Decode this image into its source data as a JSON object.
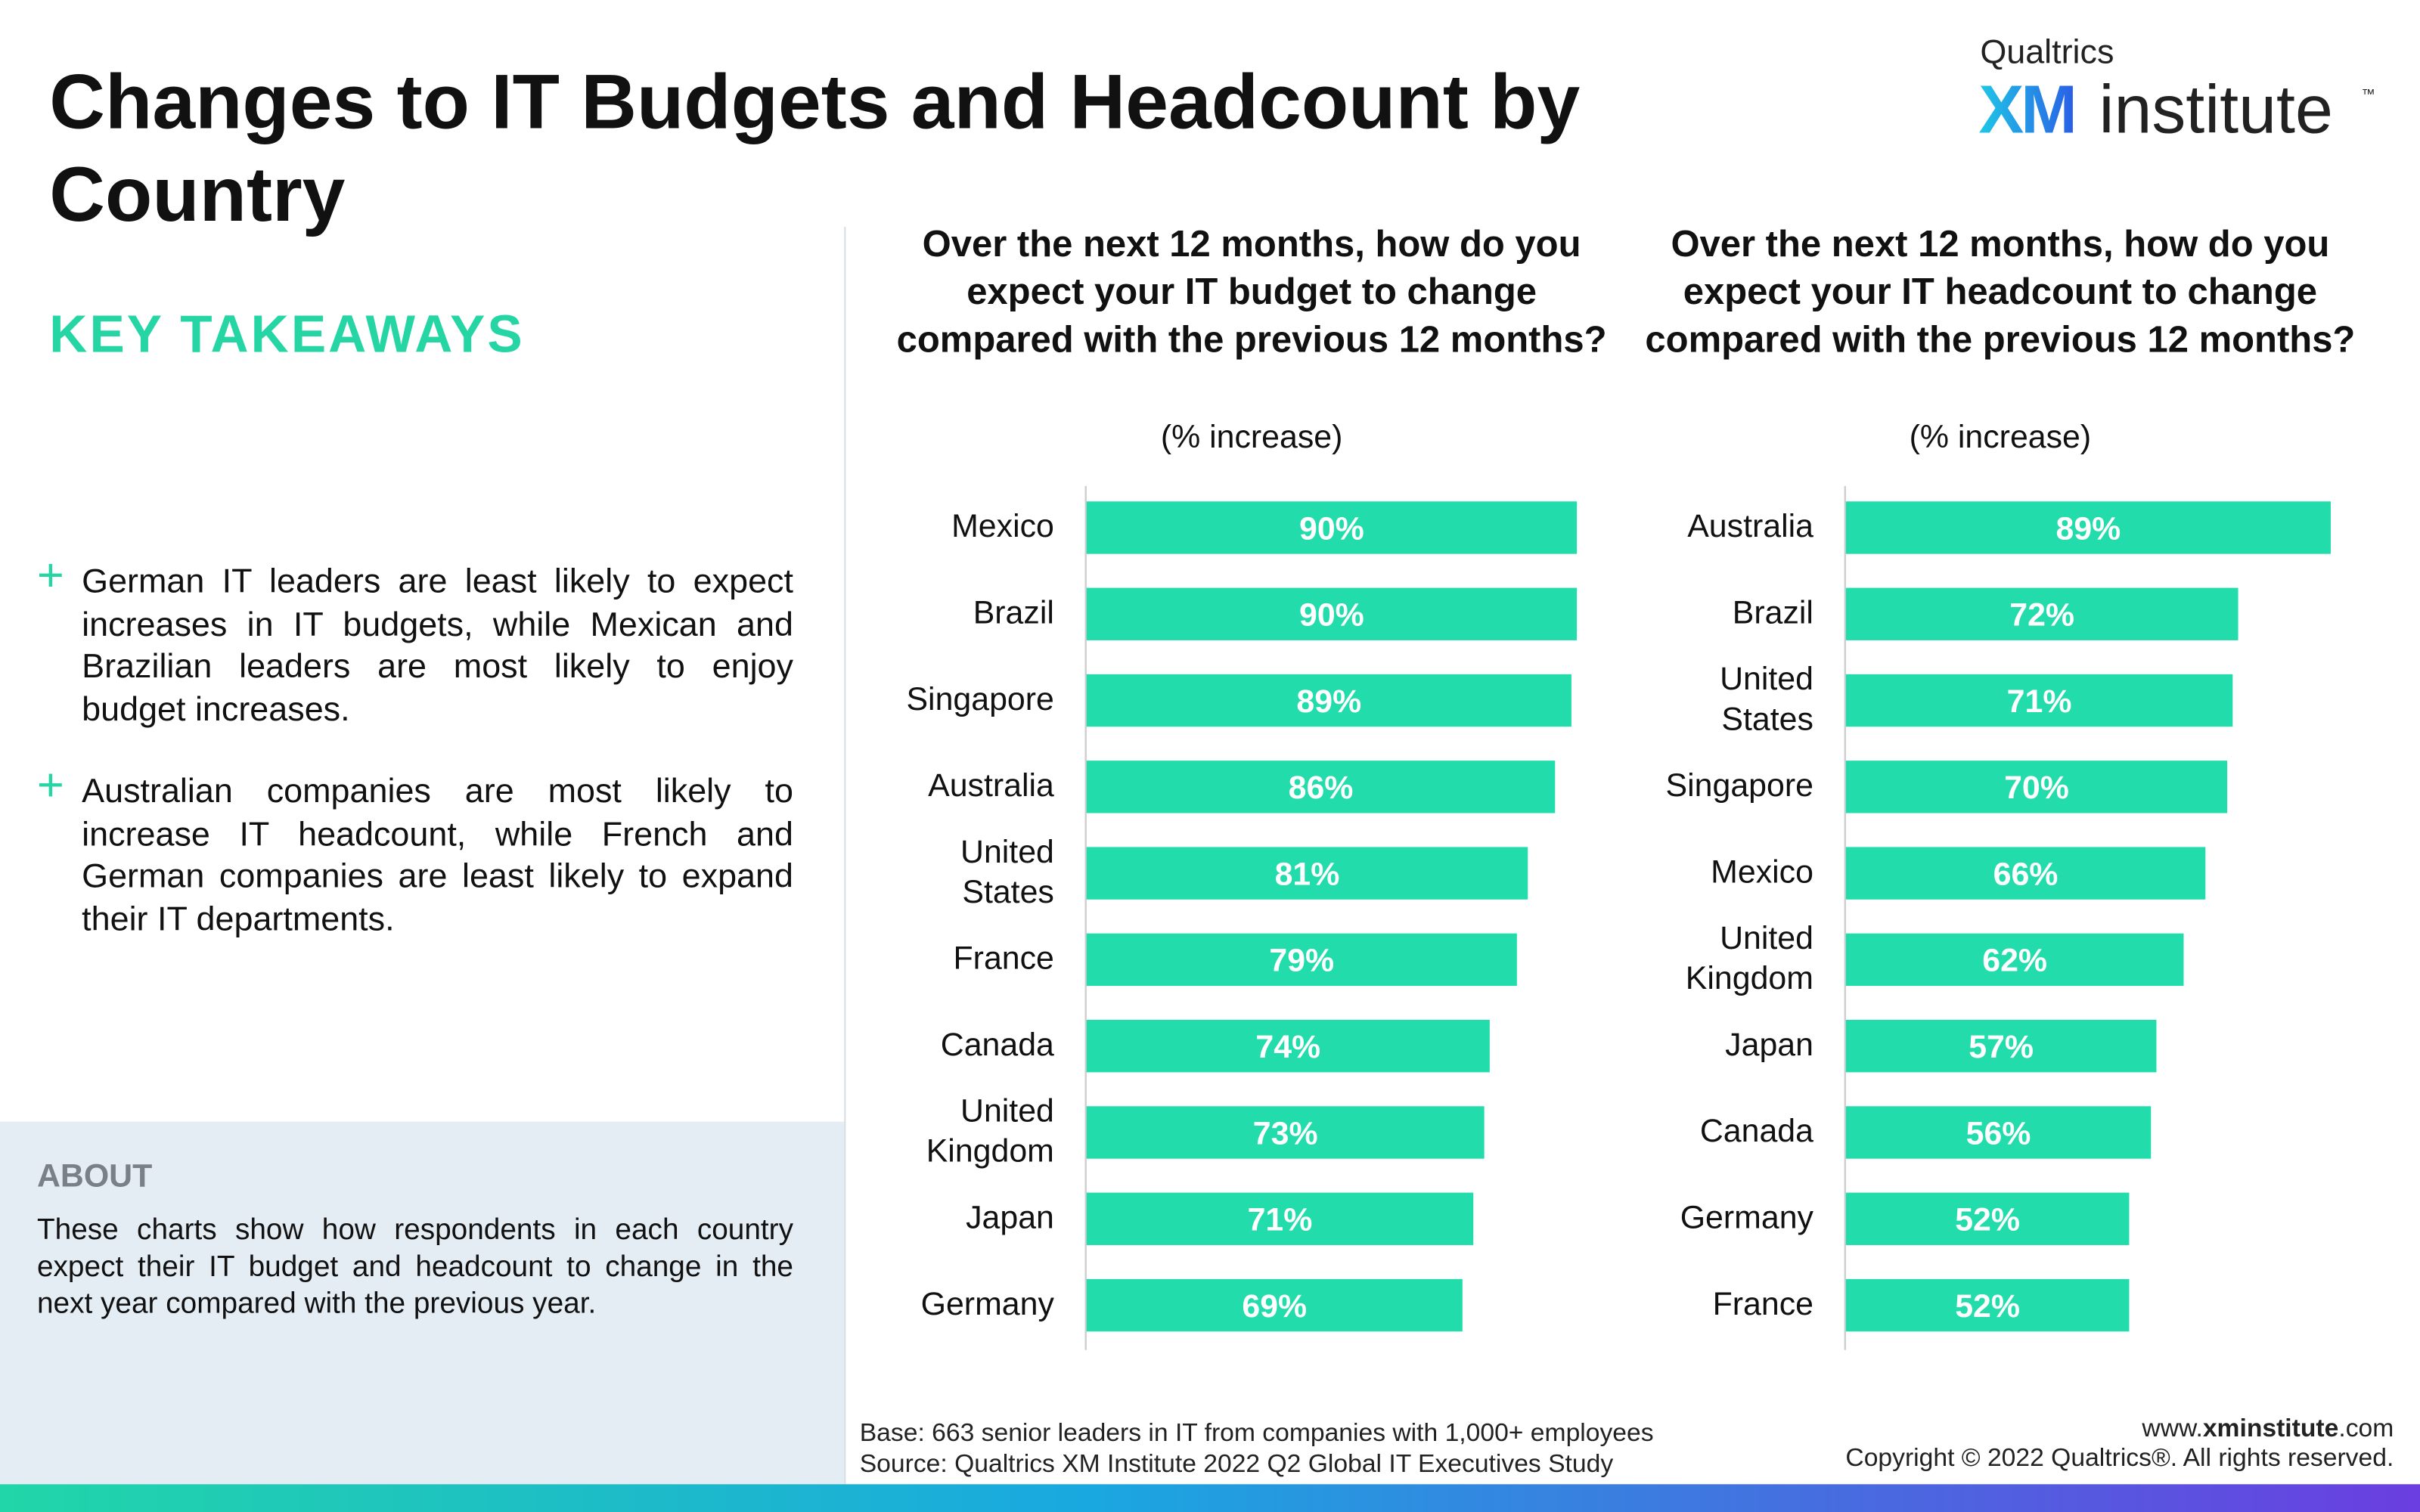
{
  "header": {
    "title": "Changes to IT Budgets and Headcount by Country"
  },
  "brand": {
    "company": "Qualtrics",
    "xm": "XM",
    "institute": "institute",
    "tm": "™"
  },
  "takeaways": {
    "heading": "KEY TAKEAWAYS",
    "items": [
      "German IT leaders are least likely to expect increases in IT budgets, while Mexican and Brazilian leaders are most likely to enjoy budget increases.",
      "Australian companies are most likely to increase IT headcount, while French and German companies are least likely to expand their IT departments."
    ]
  },
  "about": {
    "heading": "ABOUT",
    "text": "These charts show how respondents in each country expect their IT budget and headcount to change in the next year compared with the previous year."
  },
  "chart_data": [
    {
      "type": "bar",
      "orientation": "horizontal",
      "title": "Over the next 12 months, how do you expect your IT budget to change compared with the previous 12 months?",
      "subtitle": "(% increase)",
      "color": "#22ddab",
      "categories": [
        "Mexico",
        "Brazil",
        "Singapore",
        "Australia",
        "United States",
        "France",
        "Canada",
        "United Kingdom",
        "Japan",
        "Germany"
      ],
      "values": [
        90,
        90,
        89,
        86,
        81,
        79,
        74,
        73,
        71,
        69
      ],
      "value_labels": [
        "90%",
        "90%",
        "89%",
        "86%",
        "81%",
        "79%",
        "74%",
        "73%",
        "71%",
        "69%"
      ]
    },
    {
      "type": "bar",
      "orientation": "horizontal",
      "title": "Over the next 12 months, how do you expect your IT headcount to change compared with the previous 12 months?",
      "subtitle": "(% increase)",
      "color": "#22ddab",
      "categories": [
        "Australia",
        "Brazil",
        "United States",
        "Singapore",
        "Mexico",
        "United Kingdom",
        "Japan",
        "Canada",
        "Germany",
        "France"
      ],
      "values": [
        89,
        72,
        71,
        70,
        66,
        62,
        57,
        56,
        52,
        52
      ],
      "value_labels": [
        "89%",
        "72%",
        "71%",
        "70%",
        "66%",
        "62%",
        "57%",
        "56%",
        "52%",
        "52%"
      ]
    }
  ],
  "footer": {
    "base": "Base: 663 senior leaders in IT from companies with 1,000+ employees",
    "source": "Source: Qualtrics XM Institute 2022 Q2 Global IT Executives Study",
    "web_prefix": "www.",
    "web_bold": "xminstitute",
    "web_suffix": ".com",
    "copyright": "Copyright © 2022 Qualtrics®. All rights reserved."
  }
}
